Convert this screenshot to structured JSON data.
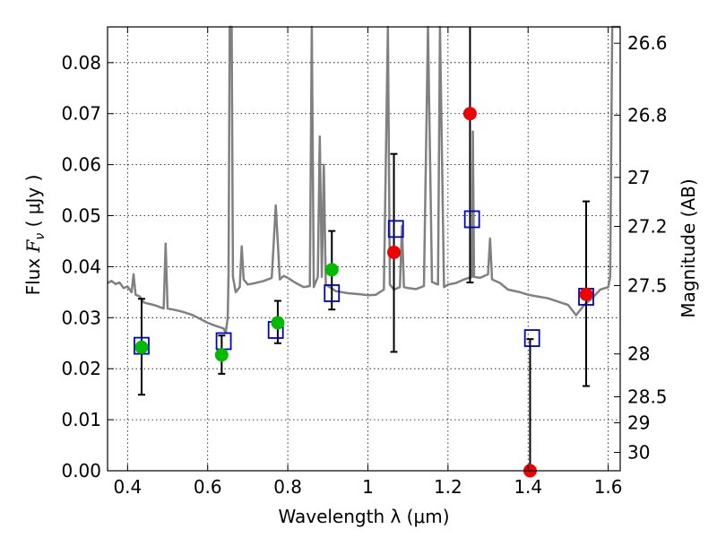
{
  "chart_data": {
    "type": "scatter",
    "xlabel": "Wavelength  λ (μm)",
    "ylabel_left_prefix": "Flux  ",
    "ylabel_left_symbol": "F",
    "ylabel_left_subscript": "ν",
    "ylabel_left_unit": "  ( μJy )",
    "ylabel_right": "Magnitude (AB)",
    "xlim": [
      0.35,
      1.63
    ],
    "ylim": [
      0.0,
      0.087
    ],
    "grid": true,
    "x_ticks": [
      {
        "value": 0.4,
        "label": "0.4"
      },
      {
        "value": 0.6,
        "label": "0.6"
      },
      {
        "value": 0.8,
        "label": "0.8"
      },
      {
        "value": 1.0,
        "label": "1"
      },
      {
        "value": 1.2,
        "label": "1.2"
      },
      {
        "value": 1.4,
        "label": "1.4"
      },
      {
        "value": 1.6,
        "label": "1.6"
      }
    ],
    "y_ticks": [
      {
        "value": 0.0,
        "label": "0.00"
      },
      {
        "value": 0.01,
        "label": "0.01"
      },
      {
        "value": 0.02,
        "label": "0.02"
      },
      {
        "value": 0.03,
        "label": "0.03"
      },
      {
        "value": 0.04,
        "label": "0.04"
      },
      {
        "value": 0.05,
        "label": "0.05"
      },
      {
        "value": 0.06,
        "label": "0.06"
      },
      {
        "value": 0.07,
        "label": "0.07"
      },
      {
        "value": 0.08,
        "label": "0.08"
      }
    ],
    "mag_ticks": [
      {
        "value": 0.0838,
        "label": "26.6"
      },
      {
        "value": 0.0697,
        "label": "26.8"
      },
      {
        "value": 0.0575,
        "label": "27"
      },
      {
        "value": 0.0479,
        "label": "27.2"
      },
      {
        "value": 0.0363,
        "label": "27.5"
      },
      {
        "value": 0.0229,
        "label": "28"
      },
      {
        "value": 0.0145,
        "label": "28.5"
      },
      {
        "value": 0.0094,
        "label": "29"
      },
      {
        "value": 0.0036,
        "label": "30"
      }
    ],
    "model_spectrum": [
      [
        0.35,
        0.0368
      ],
      [
        0.36,
        0.0372
      ],
      [
        0.37,
        0.0366
      ],
      [
        0.38,
        0.0369
      ],
      [
        0.39,
        0.0358
      ],
      [
        0.4,
        0.0361
      ],
      [
        0.41,
        0.035
      ],
      [
        0.415,
        0.0385
      ],
      [
        0.42,
        0.0345
      ],
      [
        0.43,
        0.0342
      ],
      [
        0.44,
        0.033
      ],
      [
        0.45,
        0.0328
      ],
      [
        0.46,
        0.0326
      ],
      [
        0.47,
        0.0324
      ],
      [
        0.48,
        0.0321
      ],
      [
        0.49,
        0.0318
      ],
      [
        0.495,
        0.0445
      ],
      [
        0.5,
        0.0318
      ],
      [
        0.52,
        0.0315
      ],
      [
        0.54,
        0.0311
      ],
      [
        0.56,
        0.0306
      ],
      [
        0.58,
        0.0298
      ],
      [
        0.6,
        0.029
      ],
      [
        0.62,
        0.0284
      ],
      [
        0.64,
        0.0279
      ],
      [
        0.645,
        0.027
      ],
      [
        0.65,
        0.03
      ],
      [
        0.652,
        0.0385
      ],
      [
        0.655,
        0.087
      ],
      [
        0.66,
        0.087
      ],
      [
        0.663,
        0.038
      ],
      [
        0.67,
        0.035
      ],
      [
        0.68,
        0.036
      ],
      [
        0.685,
        0.044
      ],
      [
        0.69,
        0.0375
      ],
      [
        0.7,
        0.0365
      ],
      [
        0.72,
        0.0368
      ],
      [
        0.74,
        0.0372
      ],
      [
        0.76,
        0.0378
      ],
      [
        0.77,
        0.052
      ],
      [
        0.78,
        0.0375
      ],
      [
        0.79,
        0.0382
      ],
      [
        0.8,
        0.0378
      ],
      [
        0.82,
        0.0368
      ],
      [
        0.84,
        0.036
      ],
      [
        0.855,
        0.0362
      ],
      [
        0.86,
        0.087
      ],
      [
        0.865,
        0.036
      ],
      [
        0.875,
        0.038
      ],
      [
        0.88,
        0.0655
      ],
      [
        0.885,
        0.038
      ],
      [
        0.89,
        0.06
      ],
      [
        0.895,
        0.0365
      ],
      [
        0.92,
        0.0352
      ],
      [
        0.95,
        0.0348
      ],
      [
        0.98,
        0.0346
      ],
      [
        1.0,
        0.0344
      ],
      [
        1.02,
        0.0345
      ],
      [
        1.04,
        0.0355
      ],
      [
        1.05,
        0.087
      ],
      [
        1.055,
        0.0365
      ],
      [
        1.065,
        0.0355
      ],
      [
        1.08,
        0.036
      ],
      [
        1.085,
        0.048
      ],
      [
        1.09,
        0.036
      ],
      [
        1.1,
        0.0358
      ],
      [
        1.12,
        0.0356
      ],
      [
        1.14,
        0.0362
      ],
      [
        1.15,
        0.087
      ],
      [
        1.16,
        0.037
      ],
      [
        1.175,
        0.0365
      ],
      [
        1.18,
        0.087
      ],
      [
        1.19,
        0.036
      ],
      [
        1.2,
        0.0365
      ],
      [
        1.22,
        0.0368
      ],
      [
        1.24,
        0.0375
      ],
      [
        1.26,
        0.038
      ],
      [
        1.262,
        0.0665
      ],
      [
        1.265,
        0.038
      ],
      [
        1.28,
        0.0378
      ],
      [
        1.3,
        0.0385
      ],
      [
        1.305,
        0.0455
      ],
      [
        1.31,
        0.0375
      ],
      [
        1.33,
        0.0368
      ],
      [
        1.35,
        0.0355
      ],
      [
        1.38,
        0.035
      ],
      [
        1.4,
        0.0345
      ],
      [
        1.42,
        0.0342
      ],
      [
        1.45,
        0.0338
      ],
      [
        1.48,
        0.033
      ],
      [
        1.5,
        0.0325
      ],
      [
        1.52,
        0.0305
      ],
      [
        1.54,
        0.0325
      ],
      [
        1.56,
        0.0338
      ],
      [
        1.58,
        0.0355
      ],
      [
        1.6,
        0.036
      ],
      [
        1.605,
        0.038
      ],
      [
        1.61,
        0.087
      ],
      [
        1.63,
        0.087
      ]
    ],
    "model_fluxes": [
      {
        "x": 0.435,
        "y": 0.0245
      },
      {
        "x": 0.64,
        "y": 0.0254
      },
      {
        "x": 0.77,
        "y": 0.0276
      },
      {
        "x": 0.91,
        "y": 0.0348
      },
      {
        "x": 1.07,
        "y": 0.0474
      },
      {
        "x": 1.26,
        "y": 0.0493
      },
      {
        "x": 1.41,
        "y": 0.026
      },
      {
        "x": 1.545,
        "y": 0.0341
      }
    ],
    "observed": [
      {
        "x": 0.435,
        "y": 0.0242,
        "lo": 0.0149,
        "hi": 0.0337,
        "color": "#00bb00"
      },
      {
        "x": 0.635,
        "y": 0.0227,
        "lo": 0.019,
        "hi": 0.0265,
        "color": "#00bb00"
      },
      {
        "x": 0.775,
        "y": 0.029,
        "lo": 0.025,
        "hi": 0.0333,
        "color": "#00bb00"
      },
      {
        "x": 0.91,
        "y": 0.0394,
        "lo": 0.0316,
        "hi": 0.047,
        "color": "#00bb00"
      },
      {
        "x": 1.065,
        "y": 0.0428,
        "lo": 0.0233,
        "hi": 0.0621,
        "color": "#ee0000"
      },
      {
        "x": 1.255,
        "y": 0.07,
        "lo": 0.0369,
        "hi": 0.087,
        "color": "#ee0000"
      },
      {
        "x": 1.405,
        "y": 0.0,
        "lo": 0.0,
        "hi": 0.0258,
        "color": "#ee0000"
      },
      {
        "x": 1.545,
        "y": 0.0346,
        "lo": 0.0166,
        "hi": 0.0528,
        "color": "#ee0000"
      }
    ],
    "colors": {
      "spectrum": "#808080",
      "model_box": "#0000cc",
      "errorbar": "#000000",
      "grid": "#000000"
    }
  }
}
